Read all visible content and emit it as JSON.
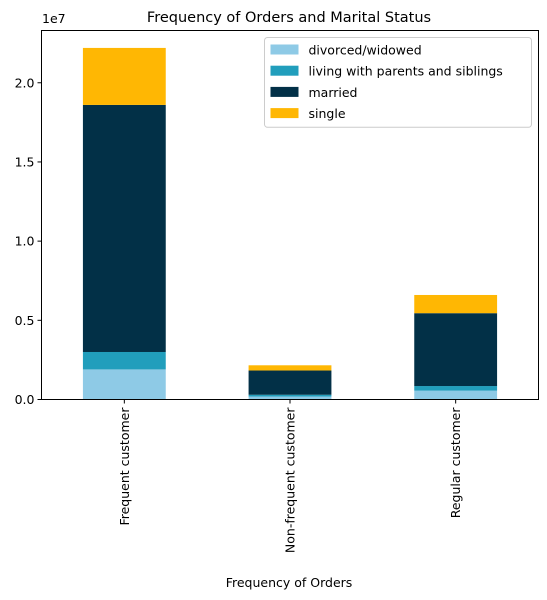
{
  "chart_data": {
    "type": "bar",
    "stacked": true,
    "title": "Frequency of Orders and Marital Status",
    "xlabel": "Frequency of Orders",
    "ylabel": "",
    "y_offset_label": "1e7",
    "categories": [
      "Frequent customer",
      "Non-frequent customer",
      "Regular customer"
    ],
    "ylim": [
      0,
      23300000
    ],
    "yticks": [
      0,
      5000000,
      10000000,
      15000000,
      20000000
    ],
    "ytick_labels": [
      "0.0",
      "0.5",
      "1.0",
      "1.5",
      "2.0"
    ],
    "legend_position": "top-right",
    "grid": false,
    "series": [
      {
        "name": "divorced/widowed",
        "color": "#8ecae6",
        "values": [
          1900000,
          190000,
          560000
        ]
      },
      {
        "name": "living with parents and siblings",
        "color": "#219ebc",
        "values": [
          1100000,
          110000,
          290000
        ]
      },
      {
        "name": "married",
        "color": "#023047",
        "values": [
          15600000,
          1530000,
          4600000
        ]
      },
      {
        "name": "single",
        "color": "#ffb703",
        "values": [
          3600000,
          330000,
          1150000
        ]
      }
    ]
  }
}
